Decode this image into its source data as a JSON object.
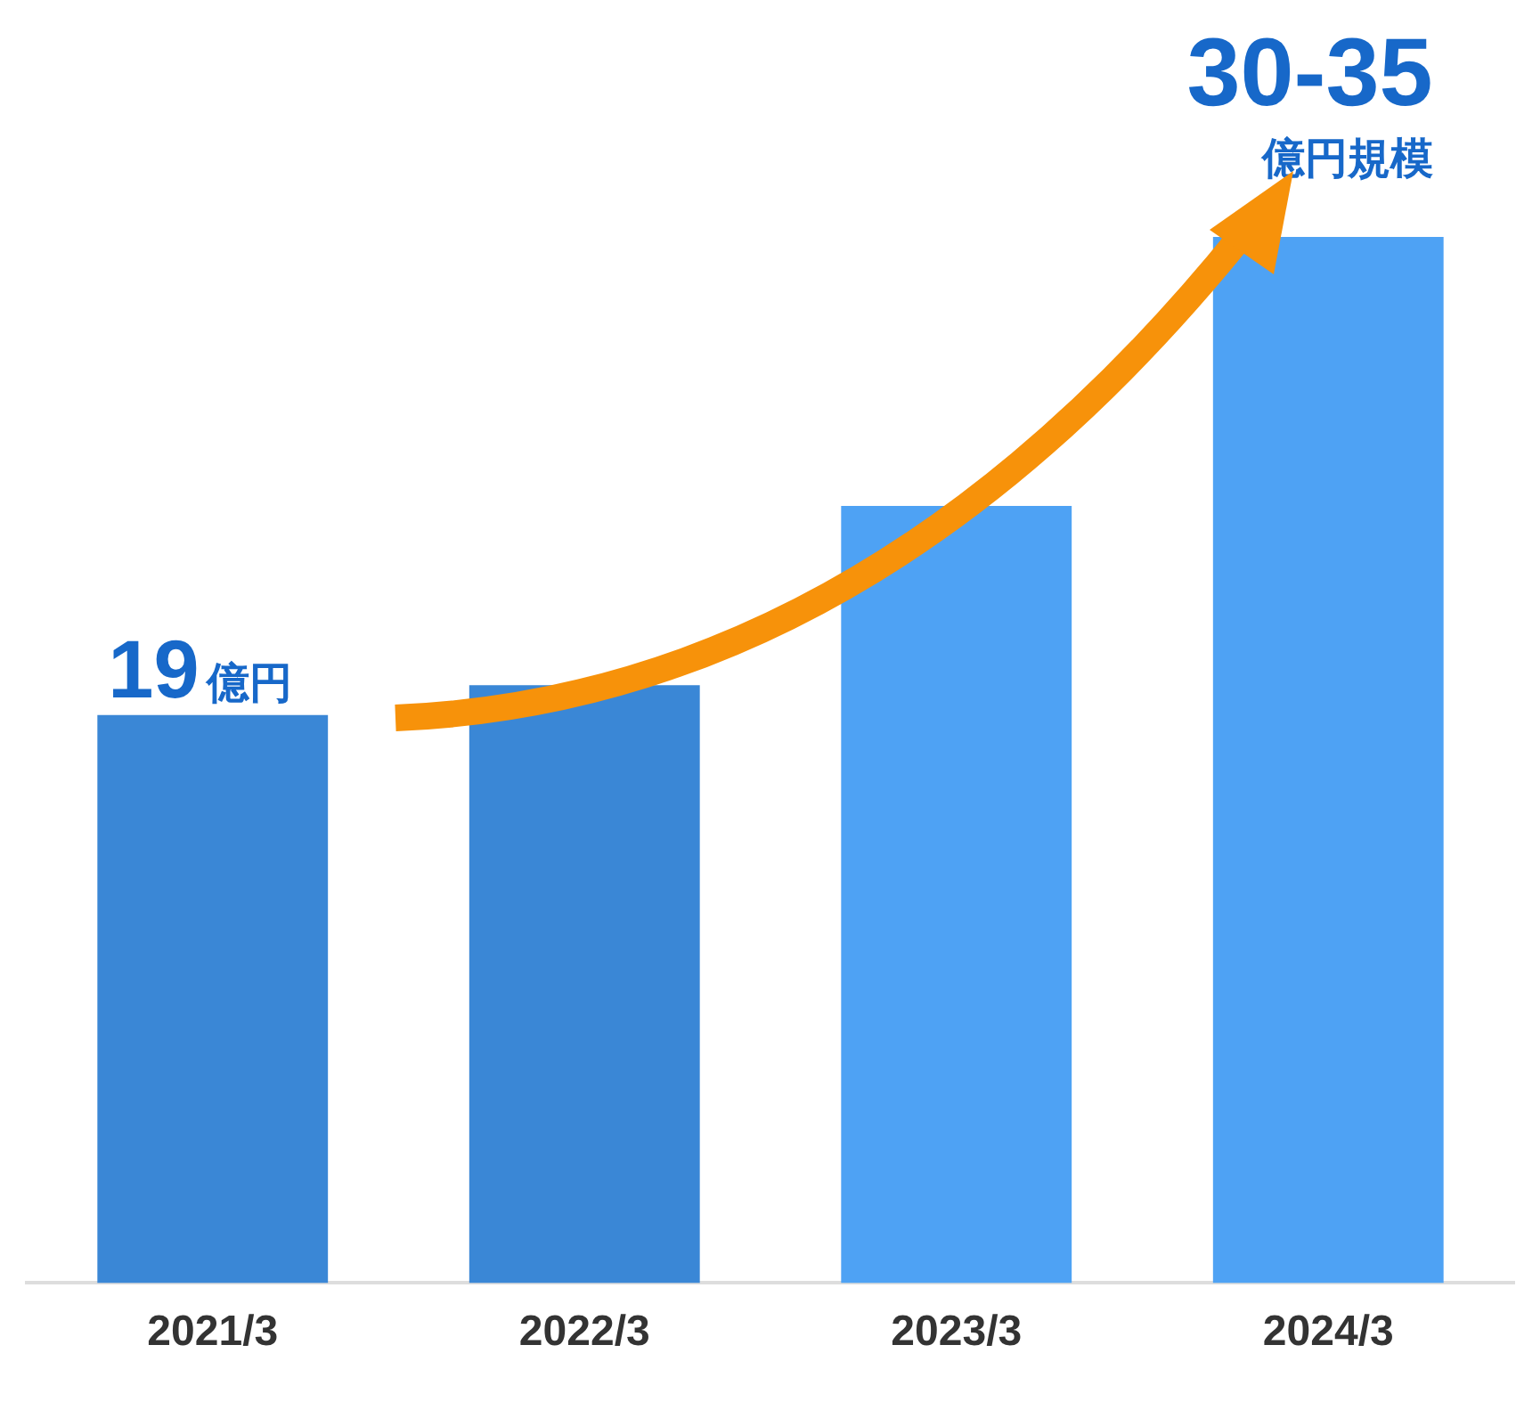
{
  "chart_data": {
    "type": "bar",
    "categories": [
      "2021/3",
      "2022/3",
      "2023/3",
      "2024/3"
    ],
    "values": [
      19,
      20,
      26,
      35
    ],
    "colors": [
      "#3a87d6",
      "#3a87d6",
      "#4ea2f4",
      "#4ea2f4"
    ],
    "value_labels": [
      "19億円",
      null,
      null,
      "30-35 億円規模"
    ],
    "grid": false,
    "legend": false
  }
}
